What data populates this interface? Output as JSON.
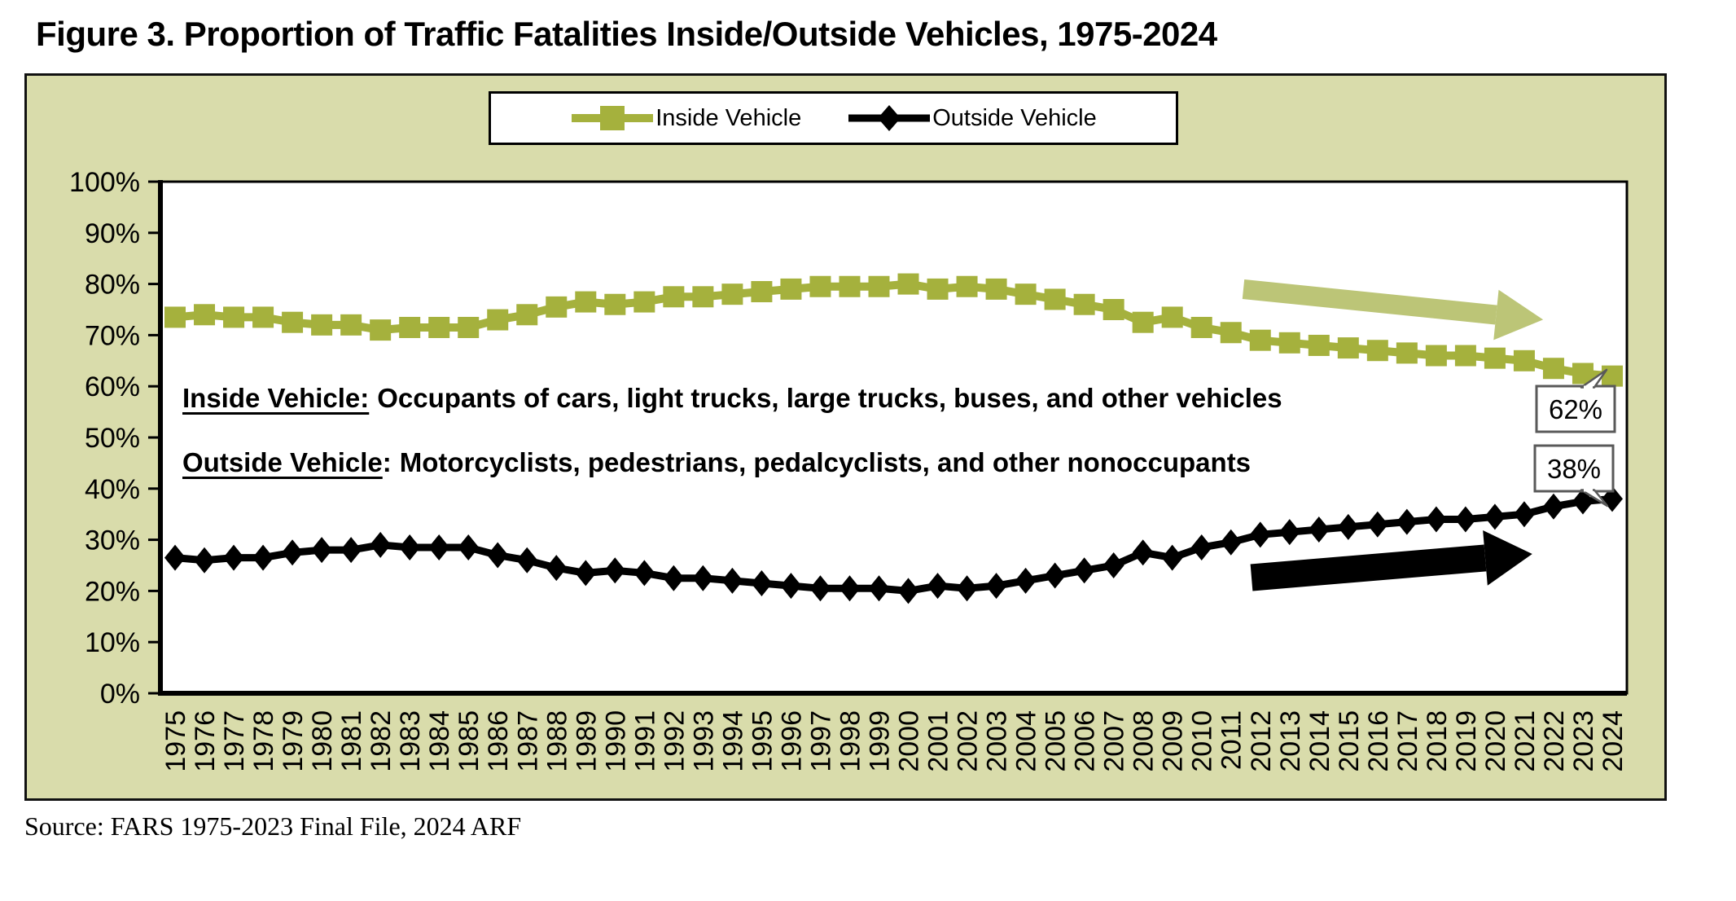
{
  "figure": {
    "source_line": "Source: FARS 1975-2023 Final File, 2024 ARF"
  },
  "chart_data": {
    "type": "line",
    "title": "Figure 3. Proportion of Traffic Fatalities Inside/Outside Vehicles, 1975-2024",
    "xlabel": "",
    "ylabel": "",
    "x": [
      1975,
      1976,
      1977,
      1978,
      1979,
      1980,
      1981,
      1982,
      1983,
      1984,
      1985,
      1986,
      1987,
      1988,
      1989,
      1990,
      1991,
      1992,
      1993,
      1994,
      1995,
      1996,
      1997,
      1998,
      1999,
      2000,
      2001,
      2002,
      2003,
      2004,
      2005,
      2006,
      2007,
      2008,
      2009,
      2010,
      2011,
      2012,
      2013,
      2014,
      2015,
      2016,
      2017,
      2018,
      2019,
      2020,
      2021,
      2022,
      2023,
      2024
    ],
    "ylim": [
      0,
      100
    ],
    "y_ticks": {
      "values": [
        0,
        10,
        20,
        30,
        40,
        50,
        60,
        70,
        80,
        90,
        100
      ],
      "labels": [
        "0%",
        "10%",
        "20%",
        "30%",
        "40%",
        "50%",
        "60%",
        "70%",
        "80%",
        "90%",
        "100%"
      ]
    },
    "grid": "off",
    "legend_position": "top-center",
    "plot_bg": "#ffffff",
    "chart_bg": "#d9dcab",
    "series": [
      {
        "name": "Inside Vehicle",
        "color": "#a5b13d",
        "marker": "square",
        "values": [
          73.5,
          74,
          73.5,
          73.5,
          72.5,
          72,
          72,
          71,
          71.5,
          71.5,
          71.5,
          73,
          74,
          75.5,
          76.5,
          76,
          76.5,
          77.5,
          77.5,
          78,
          78.5,
          79,
          79.5,
          79.5,
          79.5,
          80,
          79,
          79.5,
          79,
          78,
          77,
          76,
          75,
          72.5,
          73.5,
          71.5,
          70.5,
          69,
          68.5,
          68,
          67.5,
          67,
          66.5,
          66,
          66,
          65.5,
          65,
          63.5,
          62.5,
          62
        ]
      },
      {
        "name": "Outside Vehicle",
        "color": "#000000",
        "marker": "diamond",
        "values": [
          26.5,
          26,
          26.5,
          26.5,
          27.5,
          28,
          28,
          29,
          28.5,
          28.5,
          28.5,
          27,
          26,
          24.5,
          23.5,
          24,
          23.5,
          22.5,
          22.5,
          22,
          21.5,
          21,
          20.5,
          20.5,
          20.5,
          20,
          21,
          20.5,
          21,
          22,
          23,
          24,
          25,
          27.5,
          26.5,
          28.5,
          29.5,
          31,
          31.5,
          32,
          32.5,
          33,
          33.5,
          34,
          34,
          34.5,
          35,
          36.5,
          37.5,
          38
        ]
      }
    ],
    "definitions": [
      {
        "term": "Inside Vehicle:",
        "colon": "",
        "text": "Occupants of cars, light trucks, large trucks, buses, and other vehicles"
      },
      {
        "term": "Outside Vehicle",
        "colon": ":",
        "text": "Motorcyclists, pedestrians, pedalcyclists, and other nonoccupants"
      }
    ],
    "callouts": [
      {
        "label": "62%",
        "series": "Inside Vehicle"
      },
      {
        "label": "38%",
        "series": "Outside Vehicle"
      }
    ],
    "trend_arrows": [
      {
        "name": "inside-vehicle-declining",
        "color": "#bcc577"
      },
      {
        "name": "outside-vehicle-rising",
        "color": "#000000"
      }
    ]
  }
}
